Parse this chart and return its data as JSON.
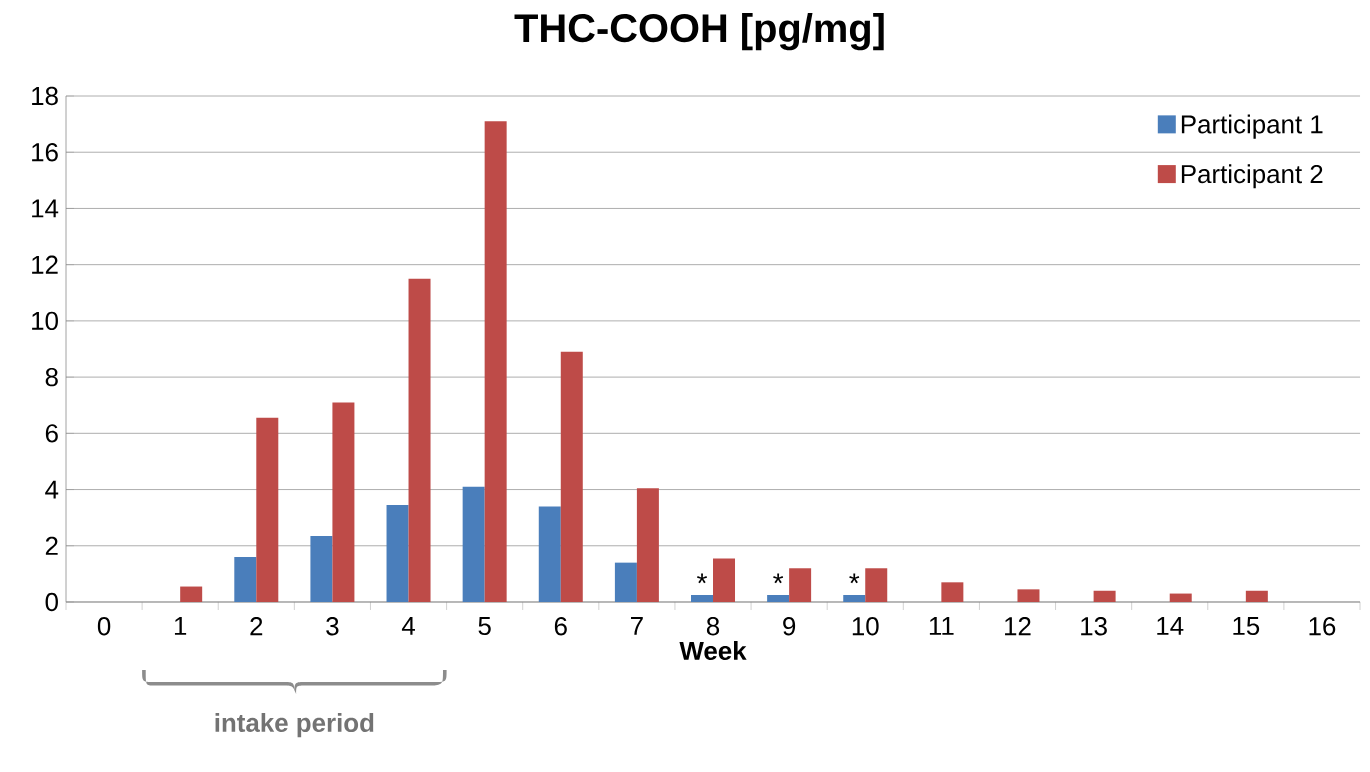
{
  "chart_data": {
    "type": "bar",
    "title": "THC-COOH [pg/mg]",
    "xlabel": "Week",
    "categories": [
      "0",
      "1",
      "2",
      "3",
      "4",
      "5",
      "6",
      "7",
      "8",
      "9",
      "10",
      "11",
      "12",
      "13",
      "14",
      "15",
      "16"
    ],
    "series": [
      {
        "name": "Participant 1",
        "color": "#4a7ebb",
        "values": [
          null,
          null,
          1.6,
          2.35,
          3.45,
          4.1,
          3.4,
          1.4,
          0.25,
          0.25,
          0.25,
          null,
          null,
          null,
          null,
          null,
          null
        ]
      },
      {
        "name": "Participant 2",
        "color": "#be4b48",
        "values": [
          null,
          0.55,
          6.55,
          7.1,
          11.5,
          17.1,
          8.9,
          4.05,
          1.55,
          1.2,
          1.2,
          0.7,
          0.45,
          0.4,
          0.3,
          0.4,
          null
        ]
      }
    ],
    "ylim": [
      0,
      18
    ],
    "yticks": [
      0,
      2,
      4,
      6,
      8,
      10,
      12,
      14,
      16,
      18
    ],
    "grid": "y",
    "legend": "top right",
    "annotations": [
      {
        "text": "*",
        "x": "8",
        "y": 0.25
      },
      {
        "text": "*",
        "x": "9",
        "y": 0.25
      },
      {
        "text": "*",
        "x": "10",
        "y": 0.25
      },
      "intake period"
    ]
  }
}
